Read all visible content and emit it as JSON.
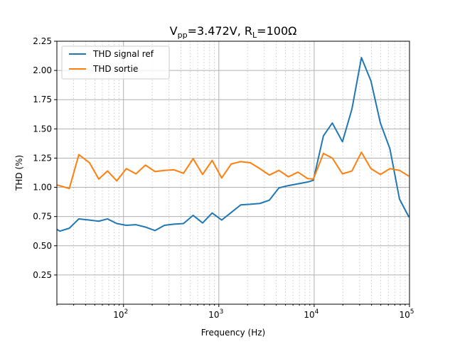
{
  "chart_data": {
    "type": "line",
    "title_main": "V",
    "title_sub1": "pp",
    "title_mid": "=3.472V, R",
    "title_sub2": "L",
    "title_end": "=100Ω",
    "xlabel": "Frequency (Hz)",
    "ylabel": "THD (%)",
    "xscale": "log",
    "xlim": [
      20,
      100000
    ],
    "ylim": [
      0,
      2.25
    ],
    "yticks": [
      "0.25",
      "0.50",
      "0.75",
      "1.00",
      "1.25",
      "1.50",
      "1.75",
      "2.00",
      "2.25"
    ],
    "xtick_base": "10",
    "xtick_exps": [
      "2",
      "3",
      "4",
      "5"
    ],
    "grid": true,
    "legend_position": "upper-left",
    "series": [
      {
        "name": "THD signal ref",
        "color": "#1f77b4",
        "x": [
          20,
          21.5,
          27,
          34,
          44,
          55,
          68,
          85,
          107,
          135,
          170,
          214,
          269,
          339,
          426,
          537,
          676,
          851,
          1071,
          1349,
          1698,
          2138,
          2692,
          3388,
          4266,
          5371,
          6761,
          8511,
          9800,
          12500,
          15500,
          19800,
          24900,
          31300,
          39400,
          49500,
          62300,
          78500,
          98700
        ],
        "y": [
          0.64,
          0.625,
          0.65,
          0.73,
          0.72,
          0.71,
          0.73,
          0.69,
          0.675,
          0.68,
          0.66,
          0.63,
          0.675,
          0.685,
          0.69,
          0.76,
          0.695,
          0.78,
          0.72,
          0.785,
          0.85,
          0.855,
          0.862,
          0.89,
          0.995,
          1.015,
          1.03,
          1.045,
          1.06,
          1.44,
          1.55,
          1.39,
          1.67,
          2.11,
          1.91,
          1.55,
          1.33,
          0.9,
          0.745
        ]
      },
      {
        "name": "THD sortie",
        "color": "#ff7f0e",
        "x": [
          20,
          27,
          34,
          44,
          55,
          68,
          85,
          107,
          135,
          170,
          214,
          269,
          339,
          426,
          537,
          676,
          851,
          1071,
          1349,
          1698,
          2138,
          2692,
          3388,
          4266,
          5371,
          6761,
          8511,
          9800,
          12500,
          15500,
          19800,
          24900,
          31300,
          39400,
          49500,
          62300,
          78500,
          98700
        ],
        "y": [
          1.02,
          0.99,
          1.28,
          1.21,
          1.07,
          1.14,
          1.055,
          1.16,
          1.115,
          1.19,
          1.135,
          1.145,
          1.15,
          1.12,
          1.245,
          1.11,
          1.23,
          1.08,
          1.2,
          1.22,
          1.21,
          1.16,
          1.105,
          1.145,
          1.09,
          1.13,
          1.075,
          1.07,
          1.29,
          1.25,
          1.115,
          1.14,
          1.3,
          1.16,
          1.11,
          1.16,
          1.145,
          1.095
        ]
      }
    ]
  }
}
